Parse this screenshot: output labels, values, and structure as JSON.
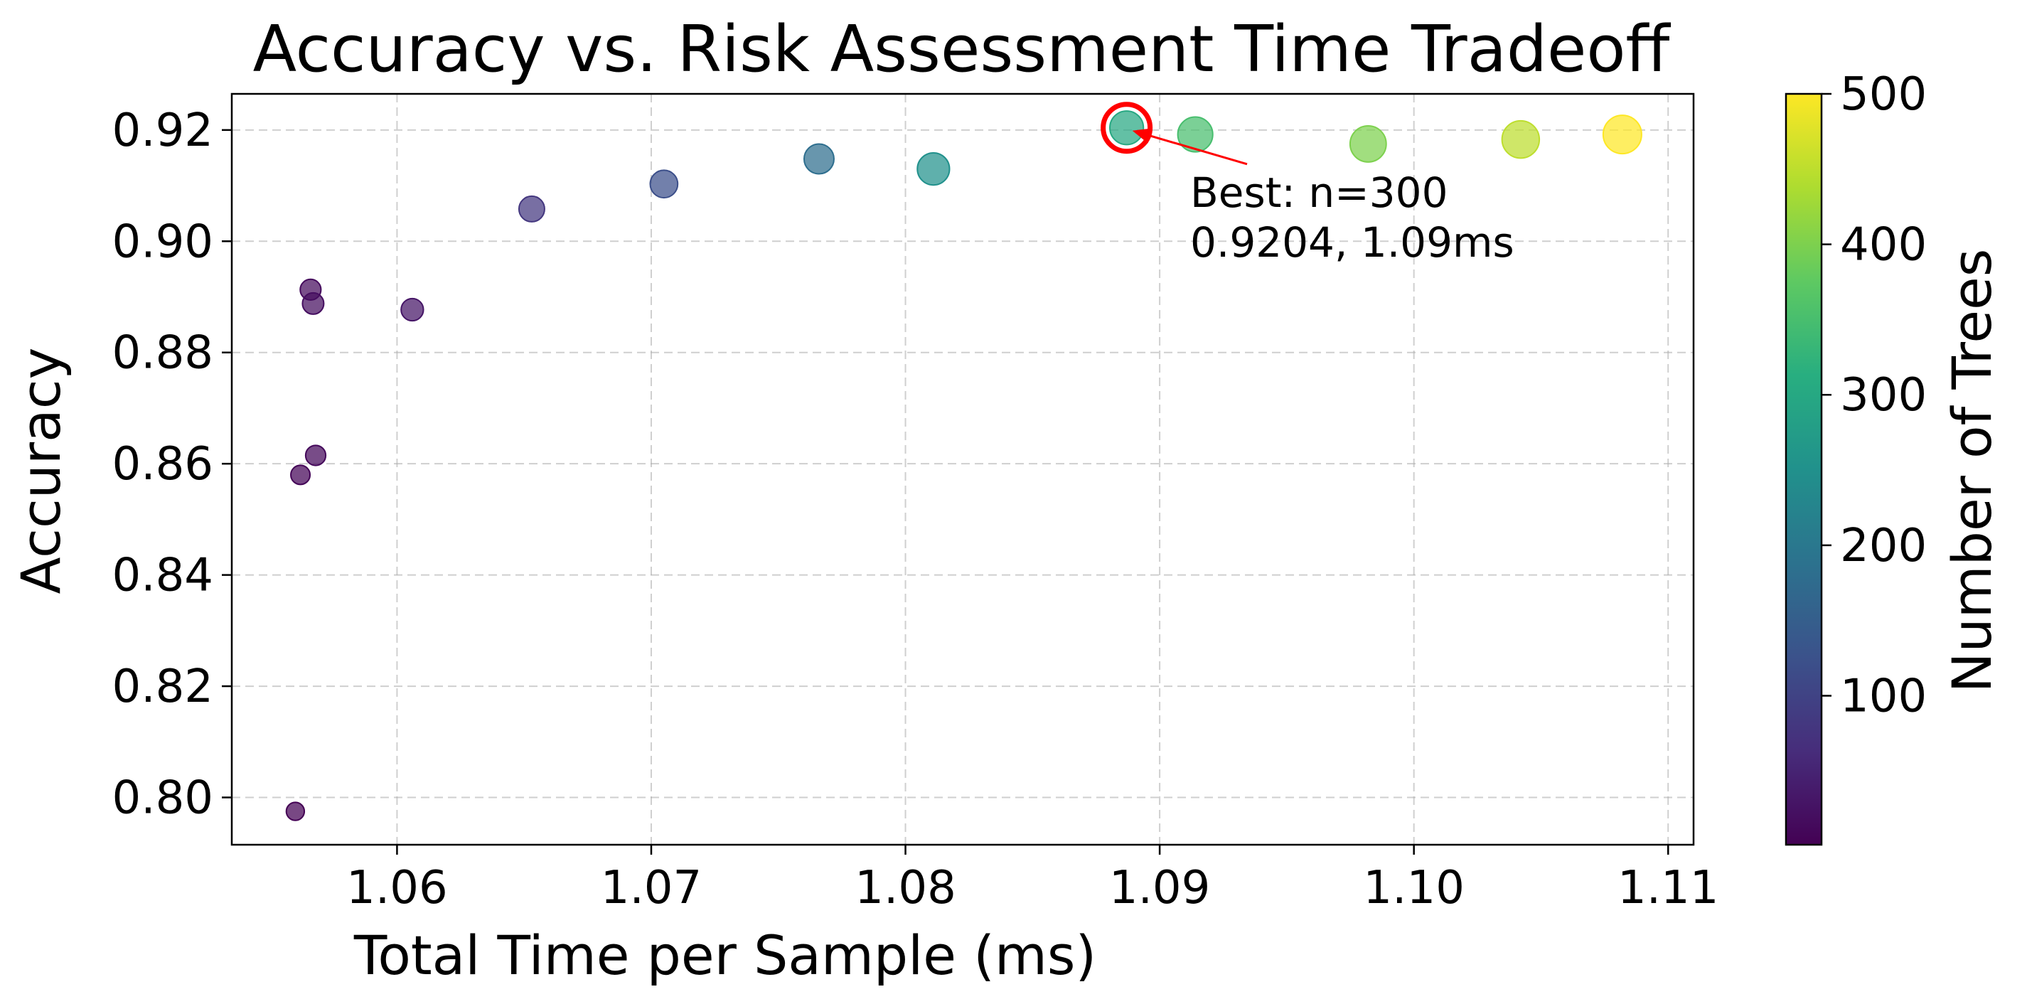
{
  "chart_data": {
    "type": "scatter",
    "title": "Accuracy vs. Risk Assessment Time Tradeoff",
    "xlabel": "Total Time per Sample (ms)",
    "ylabel": "Accuracy",
    "xlim": [
      1.0535,
      1.111
    ],
    "ylim": [
      0.7915,
      0.9265
    ],
    "x_ticks": [
      1.06,
      1.07,
      1.08,
      1.09,
      1.1,
      1.11
    ],
    "x_tick_labels": [
      "1.06",
      "1.07",
      "1.08",
      "1.09",
      "1.10",
      "1.11"
    ],
    "y_ticks": [
      0.8,
      0.82,
      0.84,
      0.86,
      0.88,
      0.9,
      0.92
    ],
    "y_tick_labels": [
      "0.80",
      "0.82",
      "0.84",
      "0.86",
      "0.88",
      "0.90",
      "0.92"
    ],
    "grid": true,
    "colormap": "viridis",
    "color_variable": "n_estimators",
    "points": [
      {
        "x": 1.056,
        "y": 0.7975,
        "n": 1
      },
      {
        "x": 1.0562,
        "y": 0.858,
        "n": 5
      },
      {
        "x": 1.0568,
        "y": 0.8615,
        "n": 10
      },
      {
        "x": 1.0566,
        "y": 0.8913,
        "n": 15
      },
      {
        "x": 1.0567,
        "y": 0.8888,
        "n": 20
      },
      {
        "x": 1.0606,
        "y": 0.8877,
        "n": 30
      },
      {
        "x": 1.0653,
        "y": 0.9058,
        "n": 80
      },
      {
        "x": 1.0705,
        "y": 0.9103,
        "n": 120
      },
      {
        "x": 1.0766,
        "y": 0.9148,
        "n": 180
      },
      {
        "x": 1.0811,
        "y": 0.913,
        "n": 250
      },
      {
        "x": 1.0887,
        "y": 0.9204,
        "n": 300
      },
      {
        "x": 1.0914,
        "y": 0.9192,
        "n": 350
      },
      {
        "x": 1.0982,
        "y": 0.9175,
        "n": 400
      },
      {
        "x": 1.1042,
        "y": 0.9183,
        "n": 450
      },
      {
        "x": 1.1082,
        "y": 0.9192,
        "n": 500
      }
    ],
    "highlight": {
      "x": 1.0887,
      "y": 0.9204,
      "color": "#ff0000"
    },
    "annotation": {
      "line1": "Best: n=300",
      "line2": "0.9204, 1.09ms",
      "text_x": 1.0912,
      "text_y": 0.9062,
      "arrow_color": "#ff0000"
    },
    "colorbar": {
      "label": "Number of Trees",
      "range": [
        1,
        500
      ],
      "ticks": [
        100,
        200,
        300,
        400,
        500
      ],
      "tick_labels": [
        "100",
        "200",
        "300",
        "400",
        "500"
      ]
    }
  }
}
